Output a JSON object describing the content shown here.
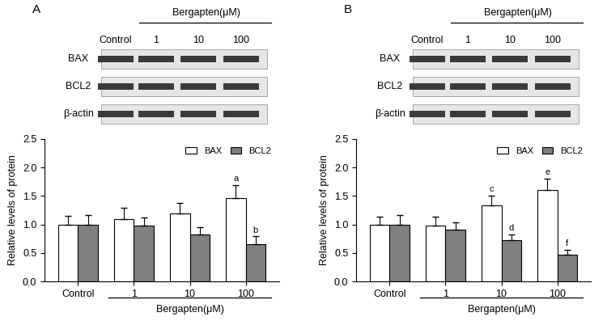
{
  "chart_data": [
    {
      "type": "bar",
      "title": "A",
      "blot": {
        "header": "Bergapten(μM)",
        "columns": [
          "Control",
          "1",
          "10",
          "100"
        ],
        "rows": [
          "BAX",
          "BCL2",
          "β-actin"
        ]
      },
      "categories": [
        "Control",
        "1",
        "10",
        "100"
      ],
      "group_label": "Bergapten(μM)",
      "group_categories": [
        "1",
        "10",
        "100"
      ],
      "ylabel": "Relative levels of protein",
      "ylim": [
        0,
        2.5
      ],
      "yticks": [
        {
          "value": 0,
          "label": "0.0"
        },
        {
          "value": 0.5,
          "label": "0.5"
        },
        {
          "value": 1.0,
          "label": "1.0"
        },
        {
          "value": 1.5,
          "label": "1.5"
        },
        {
          "value": 2.0,
          "label": "2.0"
        },
        {
          "value": 2.5,
          "label": "2.5"
        }
      ],
      "legend": "upper right",
      "series": [
        {
          "name": "BAX",
          "color": "#ffffff",
          "values": [
            1.0,
            1.1,
            1.2,
            1.47
          ],
          "errors": [
            0.15,
            0.2,
            0.18,
            0.22
          ]
        },
        {
          "name": "BCL2",
          "color": "#808080",
          "values": [
            1.0,
            0.98,
            0.83,
            0.65
          ],
          "errors": [
            0.16,
            0.14,
            0.12,
            0.14
          ]
        }
      ],
      "annotations": [
        {
          "text": "a",
          "series": "BAX",
          "category": "100"
        },
        {
          "text": "b",
          "series": "BCL2",
          "category": "100"
        }
      ]
    },
    {
      "type": "bar",
      "title": "B",
      "blot": {
        "header": "Bergapten(μM)",
        "columns": [
          "Control",
          "1",
          "10",
          "100"
        ],
        "rows": [
          "BAX",
          "BCL2",
          "β-actin"
        ]
      },
      "categories": [
        "Control",
        "1",
        "10",
        "100"
      ],
      "group_label": "Bergapten(μM)",
      "group_categories": [
        "1",
        "10",
        "100"
      ],
      "ylabel": "Relative levels of protein",
      "ylim": [
        0,
        2.5
      ],
      "yticks": [
        {
          "value": 0,
          "label": "0.0"
        },
        {
          "value": 0.5,
          "label": "0.5"
        },
        {
          "value": 1.0,
          "label": "1.0"
        },
        {
          "value": 1.5,
          "label": "1.5"
        },
        {
          "value": 2.0,
          "label": "2.0"
        },
        {
          "value": 2.5,
          "label": "2.5"
        }
      ],
      "legend": "upper right",
      "series": [
        {
          "name": "BAX",
          "color": "#ffffff",
          "values": [
            1.0,
            0.98,
            1.33,
            1.61
          ],
          "errors": [
            0.14,
            0.16,
            0.18,
            0.2
          ]
        },
        {
          "name": "BCL2",
          "color": "#808080",
          "values": [
            1.0,
            0.91,
            0.73,
            0.47
          ],
          "errors": [
            0.16,
            0.13,
            0.1,
            0.09
          ]
        }
      ],
      "annotations": [
        {
          "text": "c",
          "series": "BAX",
          "category": "10"
        },
        {
          "text": "d",
          "series": "BCL2",
          "category": "10"
        },
        {
          "text": "e",
          "series": "BAX",
          "category": "100"
        },
        {
          "text": "f",
          "series": "BCL2",
          "category": "100"
        }
      ]
    }
  ]
}
